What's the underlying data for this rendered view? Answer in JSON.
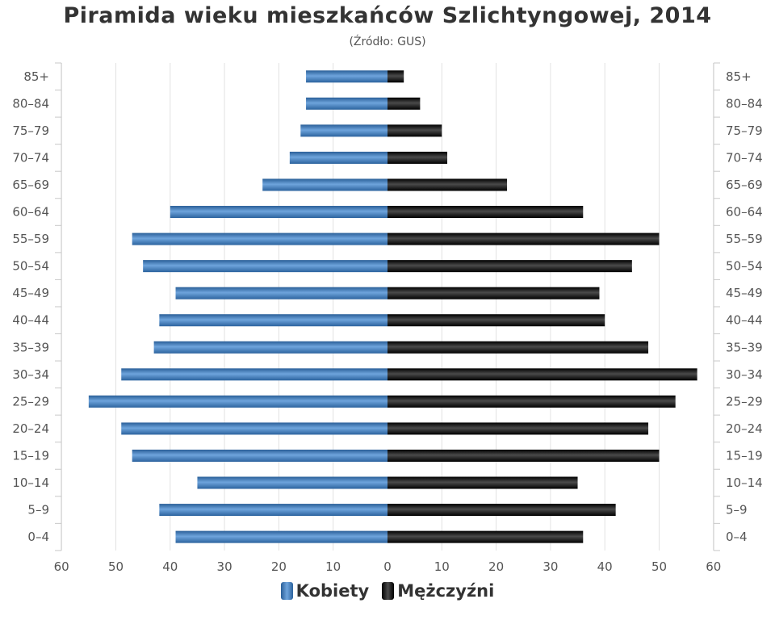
{
  "title": "Piramida wieku mieszkańców Szlichtyngowej, 2014",
  "subtitle": "(Źródło: GUS)",
  "legend": {
    "women_label": "Kobiety",
    "men_label": "Mężczyźni"
  },
  "colors": {
    "women": "#3d7fc4",
    "men": "#151515",
    "grid": "#e2e2e2",
    "axis": "#c8c8c8"
  },
  "chart_data": {
    "type": "bar",
    "orientation": "horizontal",
    "title": "Piramida wieku mieszkańców Szlichtyngowej, 2014",
    "subtitle": "(Źródło: GUS)",
    "categories": [
      "85+",
      "80–84",
      "75–79",
      "70–74",
      "65–69",
      "60–64",
      "55–59",
      "50–54",
      "45–49",
      "40–44",
      "35–39",
      "30–34",
      "25–29",
      "20–24",
      "15–19",
      "10–14",
      "5–9",
      "0–4"
    ],
    "series": [
      {
        "name": "Kobiety",
        "values": [
          15,
          15,
          16,
          18,
          23,
          40,
          47,
          45,
          39,
          42,
          43,
          49,
          55,
          49,
          47,
          35,
          42,
          39
        ]
      },
      {
        "name": "Mężczyźni",
        "values": [
          3,
          6,
          10,
          11,
          22,
          36,
          50,
          45,
          39,
          40,
          48,
          57,
          53,
          48,
          50,
          35,
          42,
          36
        ]
      }
    ],
    "xlim": [
      -60,
      60
    ],
    "x_ticks": [
      60,
      50,
      40,
      30,
      20,
      10,
      0,
      10,
      20,
      30,
      40,
      50,
      60
    ],
    "grid": true,
    "legend_position": "bottom-center"
  }
}
